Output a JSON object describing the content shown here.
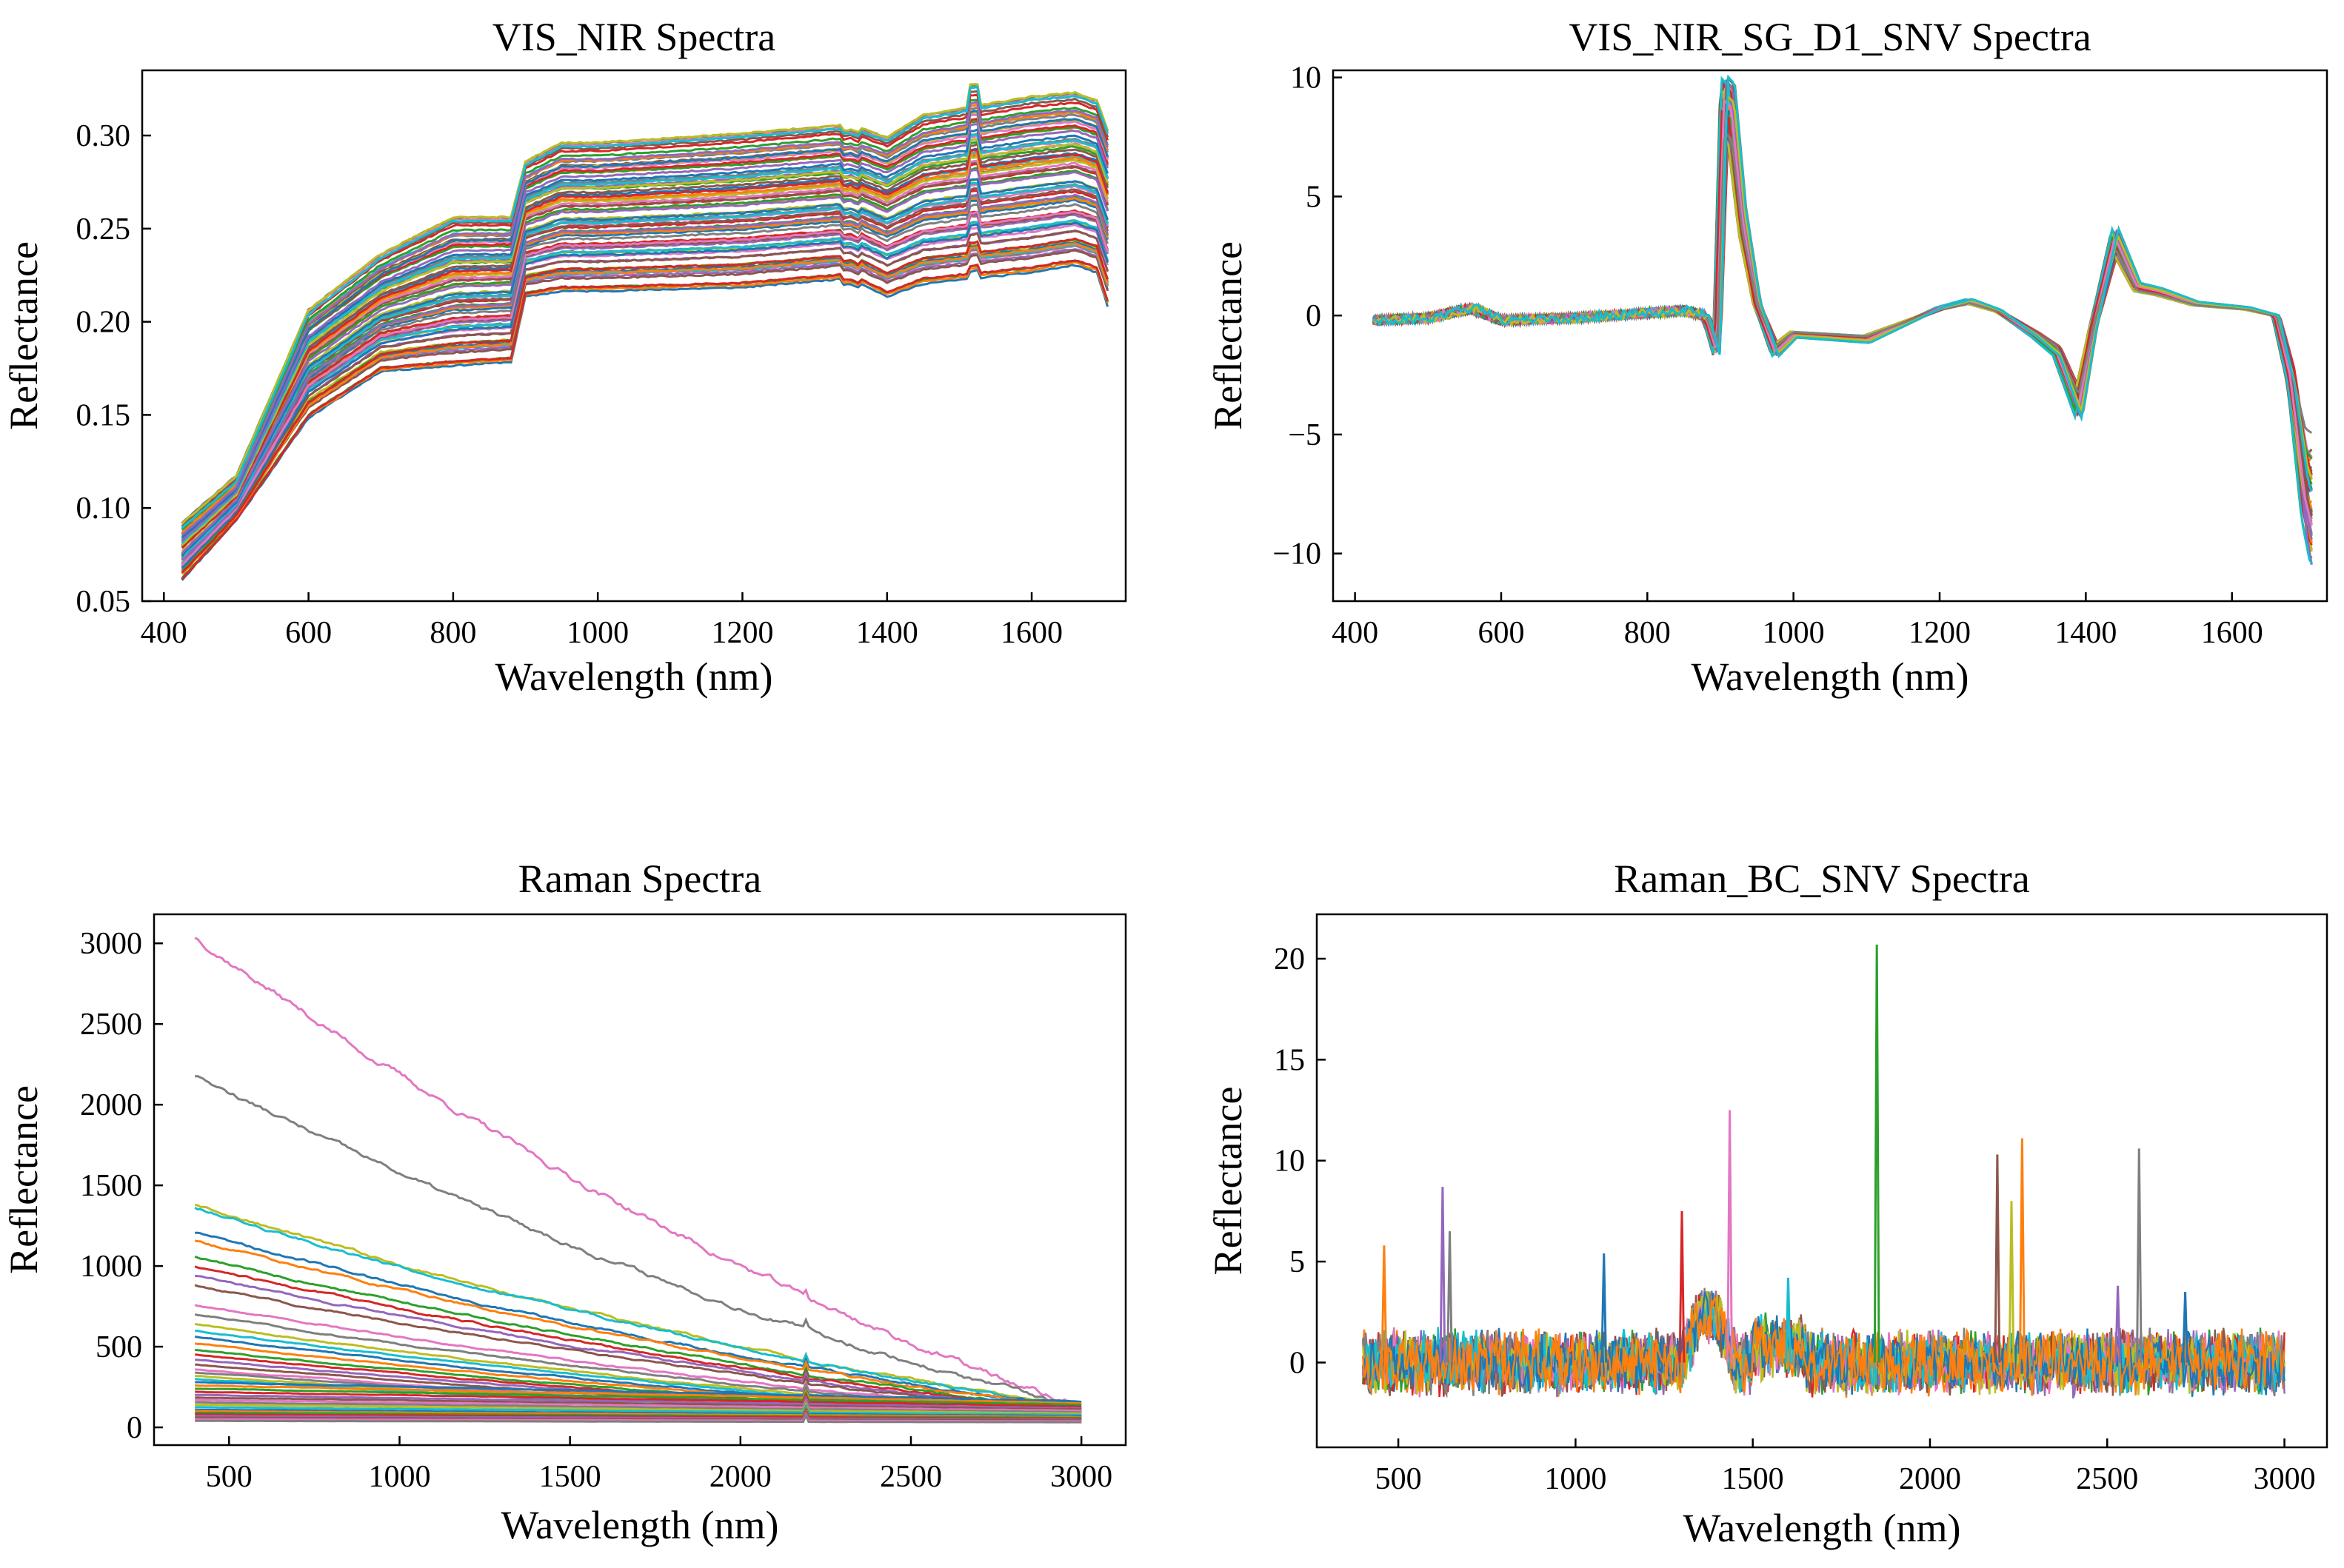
{
  "figure": {
    "panel_count": 4
  },
  "chart_data": [
    {
      "id": "vis-nir",
      "type": "line",
      "title": "VIS_NIR Spectra",
      "xlabel": "Wavelength (nm)",
      "ylabel": "Reflectance",
      "xlim": [
        370,
        1730
      ],
      "ylim": [
        0.05,
        0.335
      ],
      "xticks": [
        400,
        600,
        800,
        1000,
        1200,
        1400,
        1600
      ],
      "yticks": [
        0.05,
        0.1,
        0.15,
        0.2,
        0.25,
        0.3
      ],
      "ytick_labels": [
        "0.05",
        "0.10",
        "0.15",
        "0.20",
        "0.25",
        "0.30"
      ],
      "grid": false,
      "legend": "none",
      "series_count": 80,
      "series_range": {
        "x_start": 425,
        "x_end": 1705
      },
      "envelope": {
        "x": [
          425,
          500,
          600,
          700,
          800,
          880,
          900,
          950,
          1000,
          1200,
          1350,
          1400,
          1450,
          1600,
          1660,
          1690,
          1705
        ],
        "low": [
          0.063,
          0.095,
          0.15,
          0.175,
          0.178,
          0.18,
          0.215,
          0.218,
          0.218,
          0.22,
          0.225,
          0.215,
          0.222,
          0.228,
          0.232,
          0.228,
          0.21
        ],
        "high": [
          0.09,
          0.115,
          0.205,
          0.235,
          0.255,
          0.255,
          0.285,
          0.295,
          0.295,
          0.3,
          0.305,
          0.298,
          0.31,
          0.32,
          0.322,
          0.318,
          0.302
        ]
      }
    },
    {
      "id": "vis-nir-sg",
      "type": "line",
      "title": "VIS_NIR_SG_D1_SNV Spectra",
      "xlabel": "Wavelength (nm)",
      "ylabel": "Reflectance",
      "xlim": [
        370,
        1730
      ],
      "ylim": [
        -12,
        10.3
      ],
      "xticks": [
        400,
        600,
        800,
        1000,
        1200,
        1400,
        1600
      ],
      "yticks": [
        10,
        5,
        0,
        -5,
        -10
      ],
      "ytick_labels": [
        "10",
        "5",
        "0",
        "−5",
        "−10"
      ],
      "grid": false,
      "legend": "none",
      "series_count": 60,
      "series_range": {
        "x_start": 425,
        "x_end": 1710
      },
      "profile": {
        "x": [
          425,
          500,
          560,
          600,
          700,
          850,
          880,
          895,
          905,
          915,
          930,
          950,
          975,
          1000,
          1100,
          1200,
          1240,
          1280,
          1330,
          1360,
          1390,
          1410,
          1440,
          1470,
          1500,
          1550,
          1620,
          1660,
          1680,
          1700,
          1710
        ],
        "y": [
          -0.2,
          -0.1,
          0.3,
          -0.2,
          -0.1,
          0.2,
          0.0,
          -1.5,
          8.8,
          8.5,
          4.0,
          0.5,
          -1.5,
          -0.8,
          -1.0,
          0.3,
          0.6,
          0.2,
          -0.8,
          -1.5,
          -3.8,
          -0.5,
          3.2,
          1.2,
          1.0,
          0.5,
          0.3,
          0.0,
          -2.5,
          -7.0,
          -8.0
        ]
      }
    },
    {
      "id": "raman",
      "type": "line",
      "title": "Raman Spectra",
      "xlabel": "Wavelength (nm)",
      "ylabel": "Reflectance",
      "xlim": [
        280,
        3130
      ],
      "ylim": [
        -110,
        3180
      ],
      "xticks": [
        500,
        1000,
        1500,
        2000,
        2500,
        3000
      ],
      "yticks": [
        0,
        500,
        1000,
        1500,
        2000,
        2500,
        3000
      ],
      "ytick_labels": [
        "0",
        "500",
        "1000",
        "1500",
        "2000",
        "2500",
        "3000"
      ],
      "grid": false,
      "legend": "none",
      "series_count": 42,
      "series_range": {
        "x_start": 400,
        "x_end": 3000
      },
      "series_start_values": [
        3040,
        2180,
        1380,
        1360,
        1210,
        1160,
        1060,
        1000,
        940,
        880,
        760,
        700,
        640,
        600,
        560,
        520,
        480,
        450,
        420,
        390,
        360,
        340,
        320,
        300,
        280,
        260,
        240,
        220,
        200,
        185,
        170,
        155,
        140,
        125,
        110,
        100,
        90,
        80,
        70,
        60,
        50,
        40
      ],
      "series_end_value_top": 100
    },
    {
      "id": "raman-bc",
      "type": "line",
      "title": "Raman_BC_SNV Spectra",
      "xlabel": "Wavelength (nm)",
      "ylabel": "Reflectance",
      "xlim": [
        270,
        3120
      ],
      "ylim": [
        -4.2,
        22.2
      ],
      "xticks": [
        500,
        1000,
        1500,
        2000,
        2500,
        3000
      ],
      "yticks": [
        0,
        5,
        10,
        15,
        20
      ],
      "ytick_labels": [
        "0",
        "5",
        "10",
        "15",
        "20"
      ],
      "grid": false,
      "legend": "none",
      "series_count": 12,
      "series_range": {
        "x_start": 400,
        "x_end": 3000
      },
      "baseline_noise": 1.2,
      "hump": {
        "x_start": 1300,
        "x_end": 1450,
        "height": 2.5
      },
      "spikes": [
        {
          "x": 460,
          "y": 5.8
        },
        {
          "x": 625,
          "y": 8.7
        },
        {
          "x": 645,
          "y": 6.5
        },
        {
          "x": 1080,
          "y": 5.4
        },
        {
          "x": 1300,
          "y": 7.5
        },
        {
          "x": 1435,
          "y": 12.5
        },
        {
          "x": 1600,
          "y": 4.2
        },
        {
          "x": 1850,
          "y": 20.7
        },
        {
          "x": 2190,
          "y": 10.3
        },
        {
          "x": 2230,
          "y": 8.0
        },
        {
          "x": 2260,
          "y": 11.1
        },
        {
          "x": 2530,
          "y": 3.8
        },
        {
          "x": 2590,
          "y": 10.6
        },
        {
          "x": 2720,
          "y": 3.5
        }
      ]
    }
  ]
}
